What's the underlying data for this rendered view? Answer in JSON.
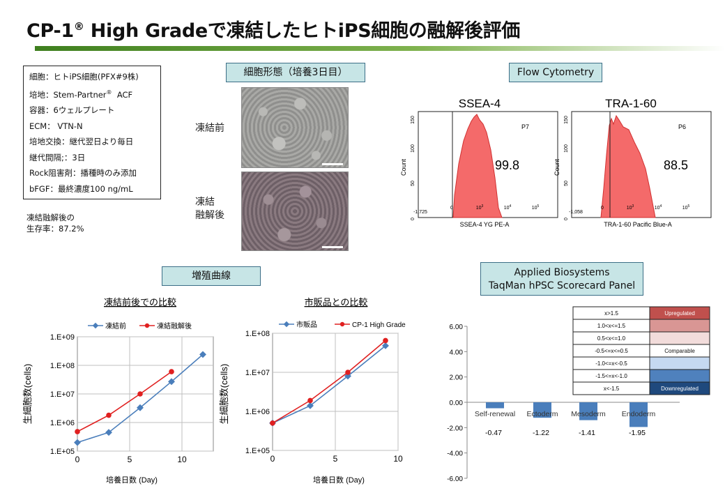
{
  "title": {
    "text": "CP-1",
    "reg": "®",
    "rest": " High Gradeで凍結したヒトiPS細胞の融解後評価"
  },
  "conditions": [
    "細胞：ヒトiPS細胞(PFX#9株)",
    "培地：Stem-Partner",
    "ACF",
    "容器：6ウェルプレート",
    "ECM：  VTN-N",
    "培地交換：継代翌日より毎日",
    "継代間隔;：3日",
    "Rock阻害剤：播種時のみ添加",
    "bFGF：最終濃度100  ng/mL"
  ],
  "survival": {
    "line1": "凍結融解後の",
    "line2": "生存率：87.2%"
  },
  "morphology": {
    "header": "細胞形態（培養3日目）",
    "label_before": "凍結前",
    "label_after_1": "凍結",
    "label_after_2": "融解後"
  },
  "flow": {
    "header": "Flow Cytometry",
    "panels": [
      {
        "name": "SSEA-4",
        "gate": "P7",
        "percent": "99.8",
        "xlabel": "SSEA-4 YG PE-A",
        "xmin": "-1,725"
      },
      {
        "name": "TRA-1-60",
        "gate": "P6",
        "percent": "88.5",
        "xlabel": "TRA-1-60 Pacific Blue-A",
        "xmin": "-1,058"
      }
    ],
    "ylabel": "Count",
    "yticks": [
      "0",
      "50",
      "100",
      "150"
    ],
    "xticks": [
      {
        "b": "0"
      },
      {
        "b": "10",
        "e": "3"
      },
      {
        "b": "10",
        "e": "4"
      },
      {
        "b": "10",
        "e": "5"
      }
    ]
  },
  "growth": {
    "header": "増殖曲線",
    "ylabel": "生細胞数(cells)",
    "xlabel": "培養日数 (Day)"
  },
  "scorecard": {
    "header_line1": "Applied Biosystems",
    "header_line2": "TaqMan hPSC Scorecard Panel",
    "legend": [
      {
        "range": "x>1.5",
        "label": "Upregulated",
        "color": "#c0504d"
      },
      {
        "range": "1.0<x<=1.5",
        "label": "",
        "color": "#d99694"
      },
      {
        "range": "0.5<x<=1.0",
        "label": "",
        "color": "#f2dcdb"
      },
      {
        "range": "-0.5<=x<=0.5",
        "label": "Comparable",
        "color": "#ffffff"
      },
      {
        "range": "-1.0<=x<-0.5",
        "label": "",
        "color": "#c5d9f1"
      },
      {
        "range": "-1.5<=x<-1.0",
        "label": "",
        "color": "#4f81bd"
      },
      {
        "range": "x<-1.5",
        "label": "Downregulated",
        "color": "#1f497d"
      }
    ]
  },
  "chart_data": [
    {
      "type": "line",
      "title": "凍結前後での比較",
      "xlabel": "培養日数 (Day)",
      "ylabel": "生細胞数(cells)",
      "y_scale": "log",
      "ylim": [
        100000,
        1000000000
      ],
      "xlim": [
        0,
        13
      ],
      "xticks": [
        0,
        5,
        10
      ],
      "yticks": [
        "1.E+05",
        "1.E+06",
        "1.E+07",
        "1.E+08",
        "1.E+09"
      ],
      "legend_position": "top",
      "series": [
        {
          "name": "凍結前",
          "color": "#4a7ebb",
          "marker": "diamond",
          "x": [
            0,
            3,
            6,
            9,
            12
          ],
          "y": [
            200000,
            450000,
            3300000,
            27000000,
            240000000
          ]
        },
        {
          "name": "凍結融解後",
          "color": "#e02020",
          "marker": "circle",
          "x": [
            0,
            3,
            6,
            9
          ],
          "y": [
            480000,
            1800000,
            10000000,
            60000000
          ]
        }
      ]
    },
    {
      "type": "line",
      "title": "市販品との比較",
      "xlabel": "培養日数 (Day)",
      "ylabel": "生細胞数(cells)",
      "y_scale": "log",
      "ylim": [
        100000,
        100000000
      ],
      "xlim": [
        0,
        10
      ],
      "xticks": [
        0,
        5,
        10
      ],
      "yticks": [
        "1.E+05",
        "1.E+06",
        "1.E+07",
        "1.E+08"
      ],
      "legend_position": "top",
      "series": [
        {
          "name": "市販品",
          "color": "#4a7ebb",
          "marker": "diamond",
          "x": [
            0,
            3,
            6,
            9
          ],
          "y": [
            500000,
            1400000,
            8000000,
            48000000
          ]
        },
        {
          "name": "CP-1 High Grade",
          "color": "#e02020",
          "marker": "circle",
          "x": [
            0,
            3,
            6,
            9
          ],
          "y": [
            500000,
            1900000,
            10000000,
            65000000
          ]
        }
      ]
    },
    {
      "type": "bar",
      "categories": [
        "Self-renewal",
        "Ectoderm",
        "Mesoderm",
        "Endoderm"
      ],
      "values": [
        -0.47,
        -1.22,
        -1.41,
        -1.95
      ],
      "value_labels": [
        "-0.47",
        "-1.22",
        "-1.41",
        "-1.95"
      ],
      "colors": [
        "#4a7ebb",
        "#4a7ebb",
        "#4a7ebb",
        "#4a7ebb"
      ],
      "ylim": [
        -6,
        6
      ],
      "yticks": [
        "6.00",
        "4.00",
        "2.00",
        "0.00",
        "-2.00",
        "-4.00",
        "-6.00"
      ],
      "grid": false
    }
  ]
}
